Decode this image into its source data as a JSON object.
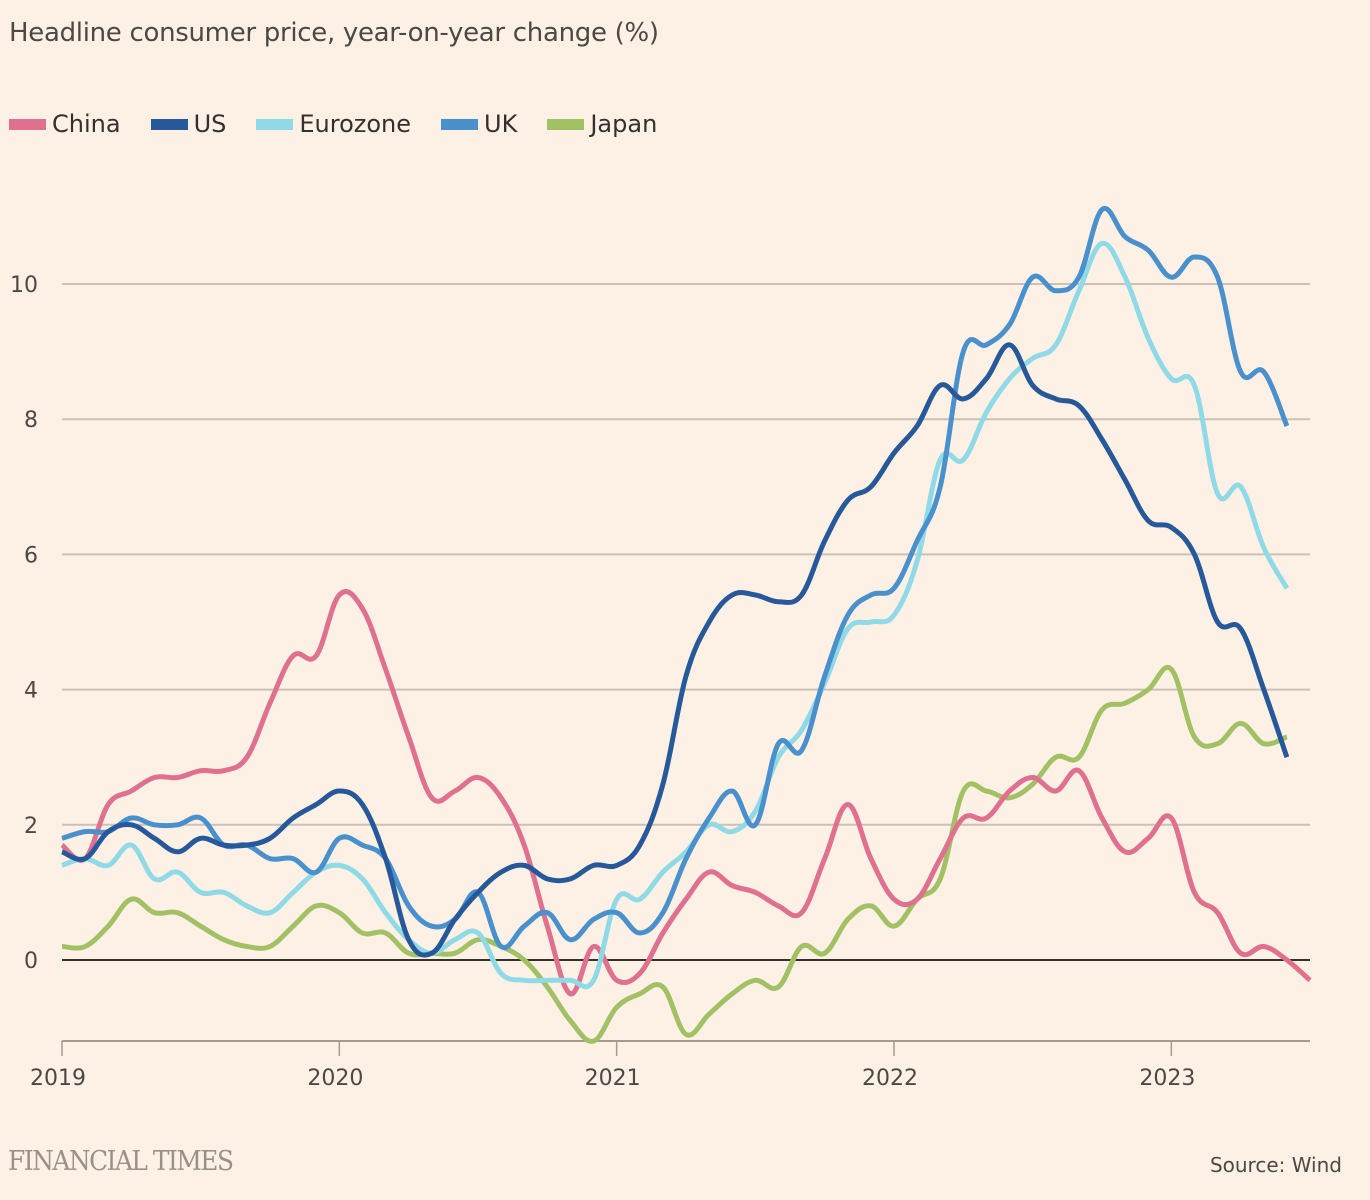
{
  "header": {
    "title": "Headline consumer price, year-on-year change (%)"
  },
  "footer": {
    "brand": "FINANCIAL TIMES",
    "source": "Source: Wind"
  },
  "chart_data": {
    "type": "line",
    "title": "Headline consumer price, year-on-year change (%)",
    "xlabel": "",
    "ylabel": "",
    "x_start": "2019-01",
    "x_unit": "month",
    "xlim": [
      2019.0,
      2023.5
    ],
    "ylim": [
      -1.2,
      11.2
    ],
    "yticks": [
      0,
      2,
      4,
      6,
      8,
      10
    ],
    "ytick_labels": [
      "0",
      "2",
      "4",
      "6",
      "8",
      "10"
    ],
    "xticks": [
      2019,
      2020,
      2021,
      2022,
      2023
    ],
    "xtick_labels": [
      "2019",
      "2020",
      "2021",
      "2022",
      "2023"
    ],
    "grid": true,
    "legend_position": "top-left",
    "series": [
      {
        "name": "China",
        "color": "#e0708f",
        "values": [
          1.7,
          1.5,
          2.3,
          2.5,
          2.7,
          2.7,
          2.8,
          2.8,
          3.0,
          3.8,
          4.5,
          4.5,
          5.4,
          5.2,
          4.3,
          3.3,
          2.4,
          2.5,
          2.7,
          2.4,
          1.7,
          0.5,
          -0.5,
          0.2,
          -0.3,
          -0.2,
          0.4,
          0.9,
          1.3,
          1.1,
          1.0,
          0.8,
          0.7,
          1.5,
          2.3,
          1.5,
          0.9,
          0.9,
          1.5,
          2.1,
          2.1,
          2.5,
          2.7,
          2.5,
          2.8,
          2.1,
          1.6,
          1.8,
          2.1,
          1.0,
          0.7,
          0.1,
          0.2,
          0.0,
          -0.3
        ]
      },
      {
        "name": "US",
        "color": "#26589a",
        "values": [
          1.6,
          1.5,
          1.9,
          2.0,
          1.8,
          1.6,
          1.8,
          1.7,
          1.7,
          1.8,
          2.1,
          2.3,
          2.5,
          2.3,
          1.5,
          0.3,
          0.1,
          0.6,
          1.0,
          1.3,
          1.4,
          1.2,
          1.2,
          1.4,
          1.4,
          1.7,
          2.6,
          4.2,
          5.0,
          5.4,
          5.4,
          5.3,
          5.4,
          6.2,
          6.8,
          7.0,
          7.5,
          7.9,
          8.5,
          8.3,
          8.6,
          9.1,
          8.5,
          8.3,
          8.2,
          7.7,
          7.1,
          6.5,
          6.4,
          6.0,
          5.0,
          4.9,
          4.0,
          3.0
        ]
      },
      {
        "name": "Eurozone",
        "color": "#8fdae6",
        "values": [
          1.4,
          1.5,
          1.4,
          1.7,
          1.2,
          1.3,
          1.0,
          1.0,
          0.8,
          0.7,
          1.0,
          1.3,
          1.4,
          1.2,
          0.7,
          0.3,
          0.1,
          0.3,
          0.4,
          -0.2,
          -0.3,
          -0.3,
          -0.3,
          -0.3,
          0.9,
          0.9,
          1.3,
          1.6,
          2.0,
          1.9,
          2.2,
          3.0,
          3.4,
          4.1,
          4.9,
          5.0,
          5.1,
          5.9,
          7.4,
          7.4,
          8.1,
          8.6,
          8.9,
          9.1,
          9.9,
          10.6,
          10.1,
          9.2,
          8.6,
          8.5,
          6.9,
          7.0,
          6.1,
          5.5
        ]
      },
      {
        "name": "UK",
        "color": "#4990cd",
        "values": [
          1.8,
          1.9,
          1.9,
          2.1,
          2.0,
          2.0,
          2.1,
          1.7,
          1.7,
          1.5,
          1.5,
          1.3,
          1.8,
          1.7,
          1.5,
          0.8,
          0.5,
          0.6,
          1.0,
          0.2,
          0.5,
          0.7,
          0.3,
          0.6,
          0.7,
          0.4,
          0.7,
          1.5,
          2.1,
          2.5,
          2.0,
          3.2,
          3.1,
          4.2,
          5.1,
          5.4,
          5.5,
          6.2,
          7.0,
          9.0,
          9.1,
          9.4,
          10.1,
          9.9,
          10.1,
          11.1,
          10.7,
          10.5,
          10.1,
          10.4,
          10.1,
          8.7,
          8.7,
          7.9
        ]
      },
      {
        "name": "Japan",
        "color": "#a2c165",
        "values": [
          0.2,
          0.2,
          0.5,
          0.9,
          0.7,
          0.7,
          0.5,
          0.3,
          0.2,
          0.2,
          0.5,
          0.8,
          0.7,
          0.4,
          0.4,
          0.1,
          0.1,
          0.1,
          0.3,
          0.2,
          0.0,
          -0.4,
          -0.9,
          -1.2,
          -0.7,
          -0.5,
          -0.4,
          -1.1,
          -0.8,
          -0.5,
          -0.3,
          -0.4,
          0.2,
          0.1,
          0.6,
          0.8,
          0.5,
          0.9,
          1.2,
          2.5,
          2.5,
          2.4,
          2.6,
          3.0,
          3.0,
          3.7,
          3.8,
          4.0,
          4.3,
          3.3,
          3.2,
          3.5,
          3.2,
          3.3
        ]
      }
    ]
  }
}
